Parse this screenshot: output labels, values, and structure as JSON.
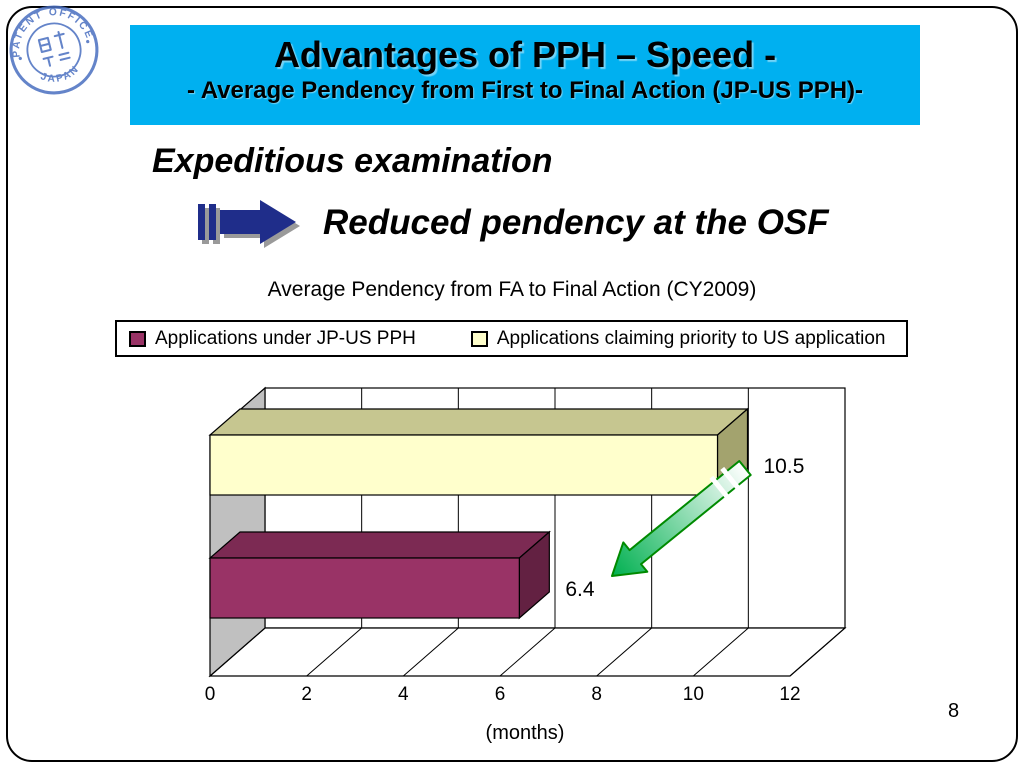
{
  "slide": {
    "page_number": "8"
  },
  "seal": {
    "top_text": "PATENT OFFICE",
    "bottom_text": "JAPAN",
    "kanji": "日本国特許庁",
    "color": "#4A6FC0"
  },
  "header": {
    "title": "Advantages of PPH – Speed -",
    "subtitle": "- Average Pendency from First to Final Action (JP-US PPH)-",
    "bg_color": "#00B0F0"
  },
  "callout": {
    "line1": "Expeditious examination",
    "line2": "Reduced pendency at the OSF",
    "arrow_color": "#1F2D8A"
  },
  "legend": {
    "items": [
      {
        "label": "Applications under JP-US PPH",
        "color": "#993366"
      },
      {
        "label": "Applications claiming priority to US application",
        "color": "#FFFFCC"
      }
    ]
  },
  "chart_data": {
    "type": "bar",
    "orientation": "horizontal",
    "title": "Average Pendency from FA to Final Action (CY2009)",
    "xlabel": "(months)",
    "xlim": [
      0,
      12
    ],
    "xticks": [
      0,
      2,
      4,
      6,
      8,
      10,
      12
    ],
    "grid": true,
    "legend_position": "top",
    "series": [
      {
        "name": "Applications claiming priority to US application",
        "value": 10.5,
        "label": "10.5",
        "face": "#FFFFCC",
        "top": "#C6C690",
        "side": "#A3A36E"
      },
      {
        "name": "Applications under JP-US PPH",
        "value": 6.4,
        "label": "6.4",
        "face": "#993366",
        "top": "#7C2A53",
        "side": "#632142"
      }
    ],
    "annotation_arrow": {
      "meaning": "pendency reduced from 10.5 to 6.4 months",
      "color": "#00B050"
    }
  }
}
